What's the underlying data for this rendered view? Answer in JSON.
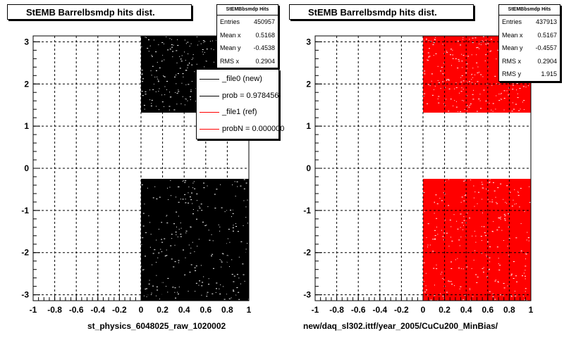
{
  "chart_data": [
    {
      "type": "heatmap",
      "title": "StEMB Barrelbsmdp hits dist.",
      "xlabel": "st_physics_6048025_raw_1020002",
      "ylabel": "",
      "xlim": [
        -1,
        1
      ],
      "ylim": [
        -3.14,
        3.14
      ],
      "x_ticks": [
        "-1",
        "-0.8",
        "-0.6",
        "-0.4",
        "-0.2",
        "0",
        "0.2",
        "0.4",
        "0.6",
        "0.8",
        "1"
      ],
      "y_ticks": [
        "-3",
        "-2",
        "-1",
        "0",
        "1",
        "2",
        "3"
      ],
      "grid": true,
      "color": "#000000",
      "filled_regions": [
        {
          "x": [
            0,
            1
          ],
          "y": [
            1.32,
            3.14
          ]
        },
        {
          "x": [
            0,
            1
          ],
          "y": [
            -3.14,
            -0.25
          ]
        }
      ],
      "stats": {
        "header": "StEMBbsmdp Hits",
        "rows": [
          {
            "label": "Entries",
            "value": "450957"
          },
          {
            "label": "Mean x",
            "value": "0.5168"
          },
          {
            "label": "Mean y",
            "value": "-0.4538"
          },
          {
            "label": "RMS x",
            "value": "0.2904"
          }
        ]
      },
      "legend": {
        "placement": "right",
        "entries": [
          {
            "label": "_file0 (new)",
            "color": "#000000"
          },
          {
            "label": "prob = 0.978456",
            "color": "#000000"
          },
          {
            "label": "_file1 (ref)",
            "color": "#ff0000"
          },
          {
            "label": "probN = 0.000000",
            "color": "#ff0000"
          }
        ]
      }
    },
    {
      "type": "heatmap",
      "title": "StEMB Barrelbsmdp hits dist.",
      "xlabel": "new/daq_sl302.ittf/year_2005/CuCu200_MinBias/",
      "ylabel": "",
      "xlim": [
        -1,
        1
      ],
      "ylim": [
        -3.14,
        3.14
      ],
      "x_ticks": [
        "-1",
        "-0.8",
        "-0.6",
        "-0.4",
        "-0.2",
        "0",
        "0.2",
        "0.4",
        "0.6",
        "0.8",
        "1"
      ],
      "y_ticks": [
        "-3",
        "-2",
        "-1",
        "0",
        "1",
        "2",
        "3"
      ],
      "grid": true,
      "color": "#ff0000",
      "filled_regions": [
        {
          "x": [
            0,
            1
          ],
          "y": [
            1.32,
            3.14
          ]
        },
        {
          "x": [
            0,
            1
          ],
          "y": [
            -3.14,
            -0.25
          ]
        }
      ],
      "stats": {
        "header": "StEMBbsmdp Hits",
        "rows": [
          {
            "label": "Entries",
            "value": "437913"
          },
          {
            "label": "Mean x",
            "value": "0.5167"
          },
          {
            "label": "Mean y",
            "value": "-0.4557"
          },
          {
            "label": "RMS x",
            "value": "0.2904"
          },
          {
            "label": "RMS y",
            "value": "1.915"
          }
        ]
      }
    }
  ]
}
